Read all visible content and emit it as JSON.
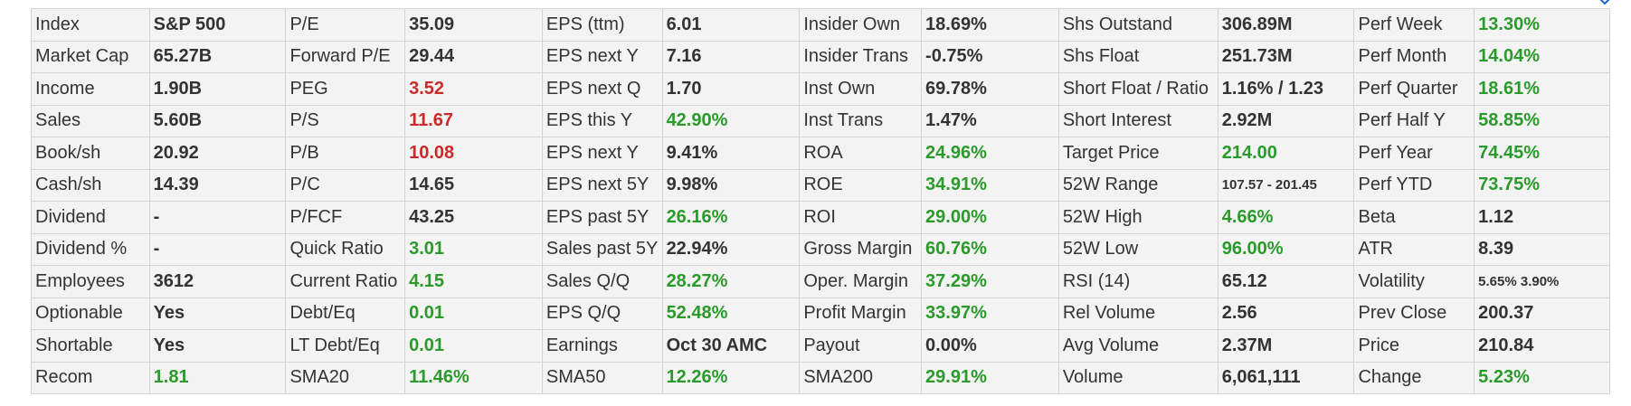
{
  "colors": {
    "positive": "#2a9a2a",
    "negative": "#cc2a2a",
    "neutral": "#333333",
    "cell_bg": "#f3f3f3",
    "border": "#d4d4d4",
    "icon": "#1a5fd0"
  },
  "corner_icon": "chevron-down-icon",
  "rows": [
    [
      {
        "label": "Index",
        "value": "S&P 500",
        "tone": "neutral"
      },
      {
        "label": "P/E",
        "value": "35.09",
        "tone": "neutral"
      },
      {
        "label": "EPS (ttm)",
        "value": "6.01",
        "tone": "neutral"
      },
      {
        "label": "Insider Own",
        "value": "18.69%",
        "tone": "neutral"
      },
      {
        "label": "Shs Outstand",
        "value": "306.89M",
        "tone": "neutral"
      },
      {
        "label": "Perf Week",
        "value": "13.30%",
        "tone": "positive"
      }
    ],
    [
      {
        "label": "Market Cap",
        "value": "65.27B",
        "tone": "neutral"
      },
      {
        "label": "Forward P/E",
        "value": "29.44",
        "tone": "neutral"
      },
      {
        "label": "EPS next Y",
        "value": "7.16",
        "tone": "neutral"
      },
      {
        "label": "Insider Trans",
        "value": "-0.75%",
        "tone": "neutral"
      },
      {
        "label": "Shs Float",
        "value": "251.73M",
        "tone": "neutral"
      },
      {
        "label": "Perf Month",
        "value": "14.04%",
        "tone": "positive"
      }
    ],
    [
      {
        "label": "Income",
        "value": "1.90B",
        "tone": "neutral"
      },
      {
        "label": "PEG",
        "value": "3.52",
        "tone": "negative"
      },
      {
        "label": "EPS next Q",
        "value": "1.70",
        "tone": "neutral"
      },
      {
        "label": "Inst Own",
        "value": "69.78%",
        "tone": "neutral"
      },
      {
        "label": "Short Float / Ratio",
        "value": "1.16% / 1.23",
        "tone": "neutral"
      },
      {
        "label": "Perf Quarter",
        "value": "18.61%",
        "tone": "positive"
      }
    ],
    [
      {
        "label": "Sales",
        "value": "5.60B",
        "tone": "neutral"
      },
      {
        "label": "P/S",
        "value": "11.67",
        "tone": "negative"
      },
      {
        "label": "EPS this Y",
        "value": "42.90%",
        "tone": "positive"
      },
      {
        "label": "Inst Trans",
        "value": "1.47%",
        "tone": "neutral"
      },
      {
        "label": "Short Interest",
        "value": "2.92M",
        "tone": "neutral"
      },
      {
        "label": "Perf Half Y",
        "value": "58.85%",
        "tone": "positive"
      }
    ],
    [
      {
        "label": "Book/sh",
        "value": "20.92",
        "tone": "neutral"
      },
      {
        "label": "P/B",
        "value": "10.08",
        "tone": "negative"
      },
      {
        "label": "EPS next Y",
        "value": "9.41%",
        "tone": "neutral"
      },
      {
        "label": "ROA",
        "value": "24.96%",
        "tone": "positive"
      },
      {
        "label": "Target Price",
        "value": "214.00",
        "tone": "positive"
      },
      {
        "label": "Perf Year",
        "value": "74.45%",
        "tone": "positive"
      }
    ],
    [
      {
        "label": "Cash/sh",
        "value": "14.39",
        "tone": "neutral"
      },
      {
        "label": "P/C",
        "value": "14.65",
        "tone": "neutral"
      },
      {
        "label": "EPS next 5Y",
        "value": "9.98%",
        "tone": "neutral"
      },
      {
        "label": "ROE",
        "value": "34.91%",
        "tone": "positive"
      },
      {
        "label": "52W Range",
        "value": "107.57 - 201.45",
        "tone": "neutral",
        "small": true
      },
      {
        "label": "Perf YTD",
        "value": "73.75%",
        "tone": "positive"
      }
    ],
    [
      {
        "label": "Dividend",
        "value": "-",
        "tone": "neutral"
      },
      {
        "label": "P/FCF",
        "value": "43.25",
        "tone": "neutral"
      },
      {
        "label": "EPS past 5Y",
        "value": "26.16%",
        "tone": "positive"
      },
      {
        "label": "ROI",
        "value": "29.00%",
        "tone": "positive"
      },
      {
        "label": "52W High",
        "value": "4.66%",
        "tone": "positive"
      },
      {
        "label": "Beta",
        "value": "1.12",
        "tone": "neutral"
      }
    ],
    [
      {
        "label": "Dividend %",
        "value": "-",
        "tone": "neutral"
      },
      {
        "label": "Quick Ratio",
        "value": "3.01",
        "tone": "positive"
      },
      {
        "label": "Sales past 5Y",
        "value": "22.94%",
        "tone": "neutral"
      },
      {
        "label": "Gross Margin",
        "value": "60.76%",
        "tone": "positive"
      },
      {
        "label": "52W Low",
        "value": "96.00%",
        "tone": "positive"
      },
      {
        "label": "ATR",
        "value": "8.39",
        "tone": "neutral"
      }
    ],
    [
      {
        "label": "Employees",
        "value": "3612",
        "tone": "neutral"
      },
      {
        "label": "Current Ratio",
        "value": "4.15",
        "tone": "positive"
      },
      {
        "label": "Sales Q/Q",
        "value": "28.27%",
        "tone": "positive"
      },
      {
        "label": "Oper. Margin",
        "value": "37.29%",
        "tone": "positive"
      },
      {
        "label": "RSI (14)",
        "value": "65.12",
        "tone": "neutral"
      },
      {
        "label": "Volatility",
        "value": "5.65% 3.90%",
        "tone": "neutral",
        "small": true
      }
    ],
    [
      {
        "label": "Optionable",
        "value": "Yes",
        "tone": "neutral"
      },
      {
        "label": "Debt/Eq",
        "value": "0.01",
        "tone": "positive"
      },
      {
        "label": "EPS Q/Q",
        "value": "52.48%",
        "tone": "positive"
      },
      {
        "label": "Profit Margin",
        "value": "33.97%",
        "tone": "positive"
      },
      {
        "label": "Rel Volume",
        "value": "2.56",
        "tone": "neutral"
      },
      {
        "label": "Prev Close",
        "value": "200.37",
        "tone": "neutral"
      }
    ],
    [
      {
        "label": "Shortable",
        "value": "Yes",
        "tone": "neutral"
      },
      {
        "label": "LT Debt/Eq",
        "value": "0.01",
        "tone": "positive"
      },
      {
        "label": "Earnings",
        "value": "Oct 30 AMC",
        "tone": "neutral"
      },
      {
        "label": "Payout",
        "value": "0.00%",
        "tone": "neutral"
      },
      {
        "label": "Avg Volume",
        "value": "2.37M",
        "tone": "neutral"
      },
      {
        "label": "Price",
        "value": "210.84",
        "tone": "neutral"
      }
    ],
    [
      {
        "label": "Recom",
        "value": "1.81",
        "tone": "positive"
      },
      {
        "label": "SMA20",
        "value": "11.46%",
        "tone": "positive"
      },
      {
        "label": "SMA50",
        "value": "12.26%",
        "tone": "positive"
      },
      {
        "label": "SMA200",
        "value": "29.91%",
        "tone": "positive"
      },
      {
        "label": "Volume",
        "value": "6,061,111",
        "tone": "neutral"
      },
      {
        "label": "Change",
        "value": "5.23%",
        "tone": "positive"
      }
    ]
  ]
}
